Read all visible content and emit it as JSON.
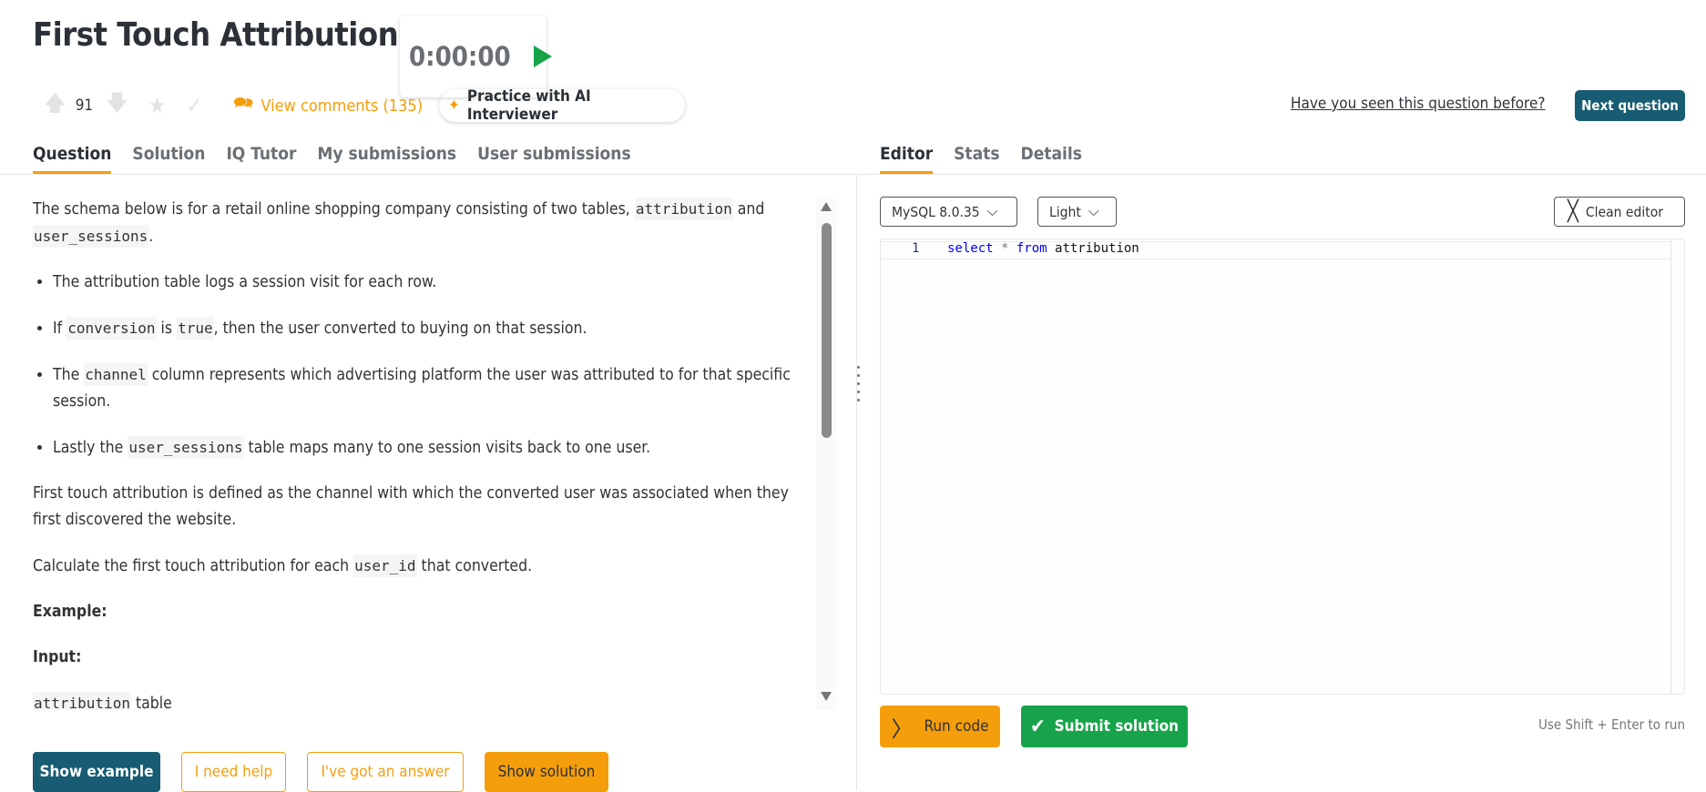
{
  "header": {
    "title": "First Touch Attribution",
    "timer": "0:00:00",
    "votes": "91",
    "comments_label": "View comments (135)",
    "ai_label": "Practice with AI Interviewer",
    "seen_link": "Have you seen this question before?",
    "next_label": "Next question"
  },
  "left_tabs": [
    "Question",
    "Solution",
    "IQ Tutor",
    "My submissions",
    "User submissions"
  ],
  "right_tabs": [
    "Editor",
    "Stats",
    "Details"
  ],
  "question": {
    "p1a": "The schema below is for a retail online shopping company consisting of two tables, ",
    "c_attribution": "attribution",
    "and": " and ",
    "c_user_sessions": "user_sessions",
    "dot": ".",
    "b1": "The attribution table logs a session visit for each row.",
    "b2a": "If ",
    "c_conversion": "conversion",
    "b2b": " is ",
    "c_true": "true",
    "b2c": ", then the user converted to buying on that session.",
    "b3a": "The ",
    "c_channel": "channel",
    "b3b": " column represents which advertising platform the user was attributed to for that specific session.",
    "b4a": "Lastly the ",
    "b4b": " table maps many to one session visits back to one user.",
    "p2": "First touch attribution is defined as the channel with which the converted user was associated when they first discovered the website.",
    "p3a": "Calculate the first touch attribution for each ",
    "c_user_id": "user_id",
    "p3b": " that converted.",
    "example": "Example:",
    "input": "Input:",
    "table_suffix": " table"
  },
  "left_buttons": {
    "show_example": "Show example",
    "need_help": "I need help",
    "got_answer": "I've got an answer",
    "show_solution": "Show solution"
  },
  "editor": {
    "dialect": "MySQL 8.0.35",
    "theme": "Light",
    "clean": "Clean editor",
    "line_number": "1",
    "kw_select": "select",
    "op_star": " * ",
    "kw_from": "from",
    "ident": " attribution",
    "run": "Run code",
    "submit": "Submit solution",
    "hint": "Use Shift + Enter to run"
  },
  "colors": {
    "primary": "#175c72",
    "accent": "#f59e0b",
    "success": "#16a34a"
  }
}
